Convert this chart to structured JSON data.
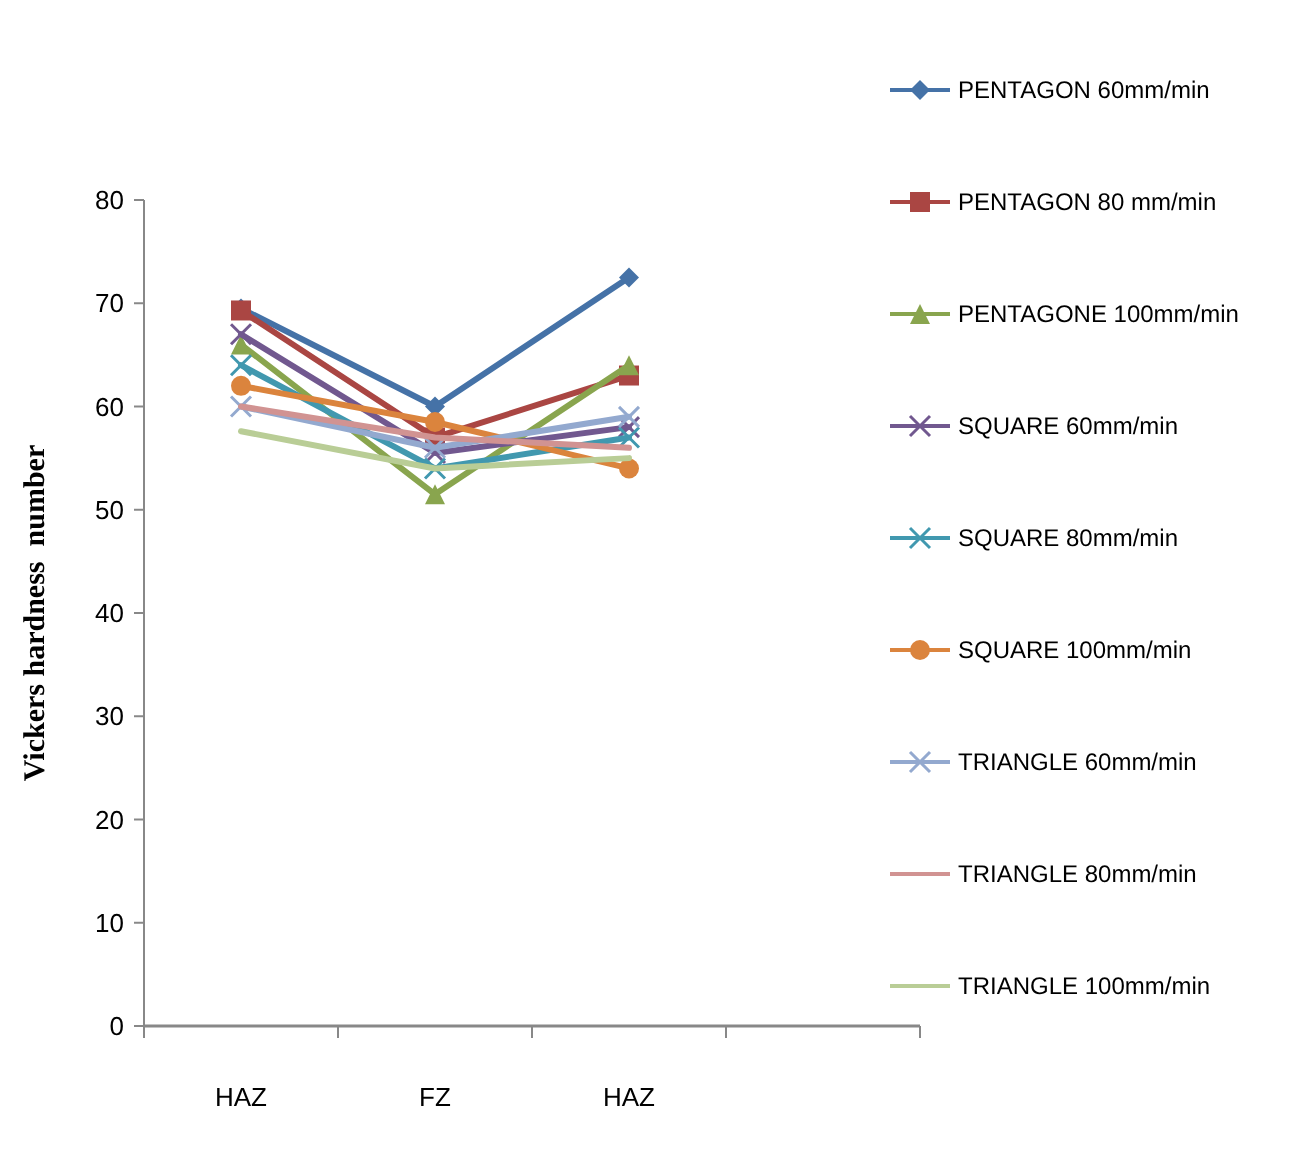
{
  "chart_data": {
    "type": "line",
    "ylabel": "Vickers hardness  number",
    "categories": [
      "HAZ",
      "FZ",
      "HAZ",
      null
    ],
    "ylim": [
      0,
      80
    ],
    "yticks": [
      0,
      10,
      20,
      30,
      40,
      50,
      60,
      70,
      80
    ],
    "grid": false,
    "legend": "right",
    "series": [
      {
        "name": "PENTAGON 60mm/min",
        "color": "#4572a7",
        "marker": "diamond",
        "values": [
          69.5,
          60,
          72.5,
          null
        ]
      },
      {
        "name": "PENTAGON 80 mm/min",
        "color": "#aa4643",
        "marker": "square",
        "values": [
          69.3,
          57,
          63,
          null
        ]
      },
      {
        "name": "PENTAGONE 100mm/min",
        "color": "#89a54e",
        "marker": "triangle",
        "values": [
          66,
          51.5,
          64,
          null
        ]
      },
      {
        "name": "SQUARE 60mm/min",
        "color": "#71588f",
        "marker": "cross",
        "values": [
          67,
          55.5,
          58,
          null
        ]
      },
      {
        "name": "SQUARE 80mm/min",
        "color": "#4198af",
        "marker": "cross",
        "values": [
          64,
          54,
          57,
          null
        ]
      },
      {
        "name": "SQUARE 100mm/min",
        "color": "#db843d",
        "marker": "circle",
        "values": [
          62,
          58.5,
          54,
          null
        ]
      },
      {
        "name": "TRIANGLE 60mm/min",
        "color": "#93a9cf",
        "marker": "cross",
        "values": [
          60,
          56,
          59,
          null
        ]
      },
      {
        "name": "TRIANGLE 80mm/min",
        "color": "#d19392",
        "marker": "none",
        "values": [
          60,
          57,
          56,
          null
        ]
      },
      {
        "name": "TRIANGLE 100mm/min",
        "color": "#b9cd96",
        "marker": "none",
        "values": [
          57.6,
          54,
          55,
          null
        ]
      }
    ]
  }
}
